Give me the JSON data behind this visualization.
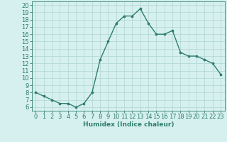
{
  "x": [
    0,
    1,
    2,
    3,
    4,
    5,
    6,
    7,
    8,
    9,
    10,
    11,
    12,
    13,
    14,
    15,
    16,
    17,
    18,
    19,
    20,
    21,
    22,
    23
  ],
  "y": [
    8,
    7.5,
    7,
    6.5,
    6.5,
    6,
    6.5,
    8,
    12.5,
    15,
    17.5,
    18.5,
    18.5,
    19.5,
    17.5,
    16,
    16,
    16.5,
    13.5,
    13,
    13,
    12.5,
    12,
    10.5
  ],
  "line_color": "#2e7d6e",
  "marker": "o",
  "markersize": 2.2,
  "linewidth": 1.0,
  "bg_color": "#d6f0f0",
  "grid_color": "#b0d4d4",
  "xlabel": "Humidex (Indice chaleur)",
  "xlabel_fontsize": 6.5,
  "tick_fontsize": 6,
  "xlim": [
    -0.5,
    23.5
  ],
  "ylim": [
    5.5,
    20.5
  ],
  "yticks": [
    6,
    7,
    8,
    9,
    10,
    11,
    12,
    13,
    14,
    15,
    16,
    17,
    18,
    19,
    20
  ],
  "xticks": [
    0,
    1,
    2,
    3,
    4,
    5,
    6,
    7,
    8,
    9,
    10,
    11,
    12,
    13,
    14,
    15,
    16,
    17,
    18,
    19,
    20,
    21,
    22,
    23
  ]
}
